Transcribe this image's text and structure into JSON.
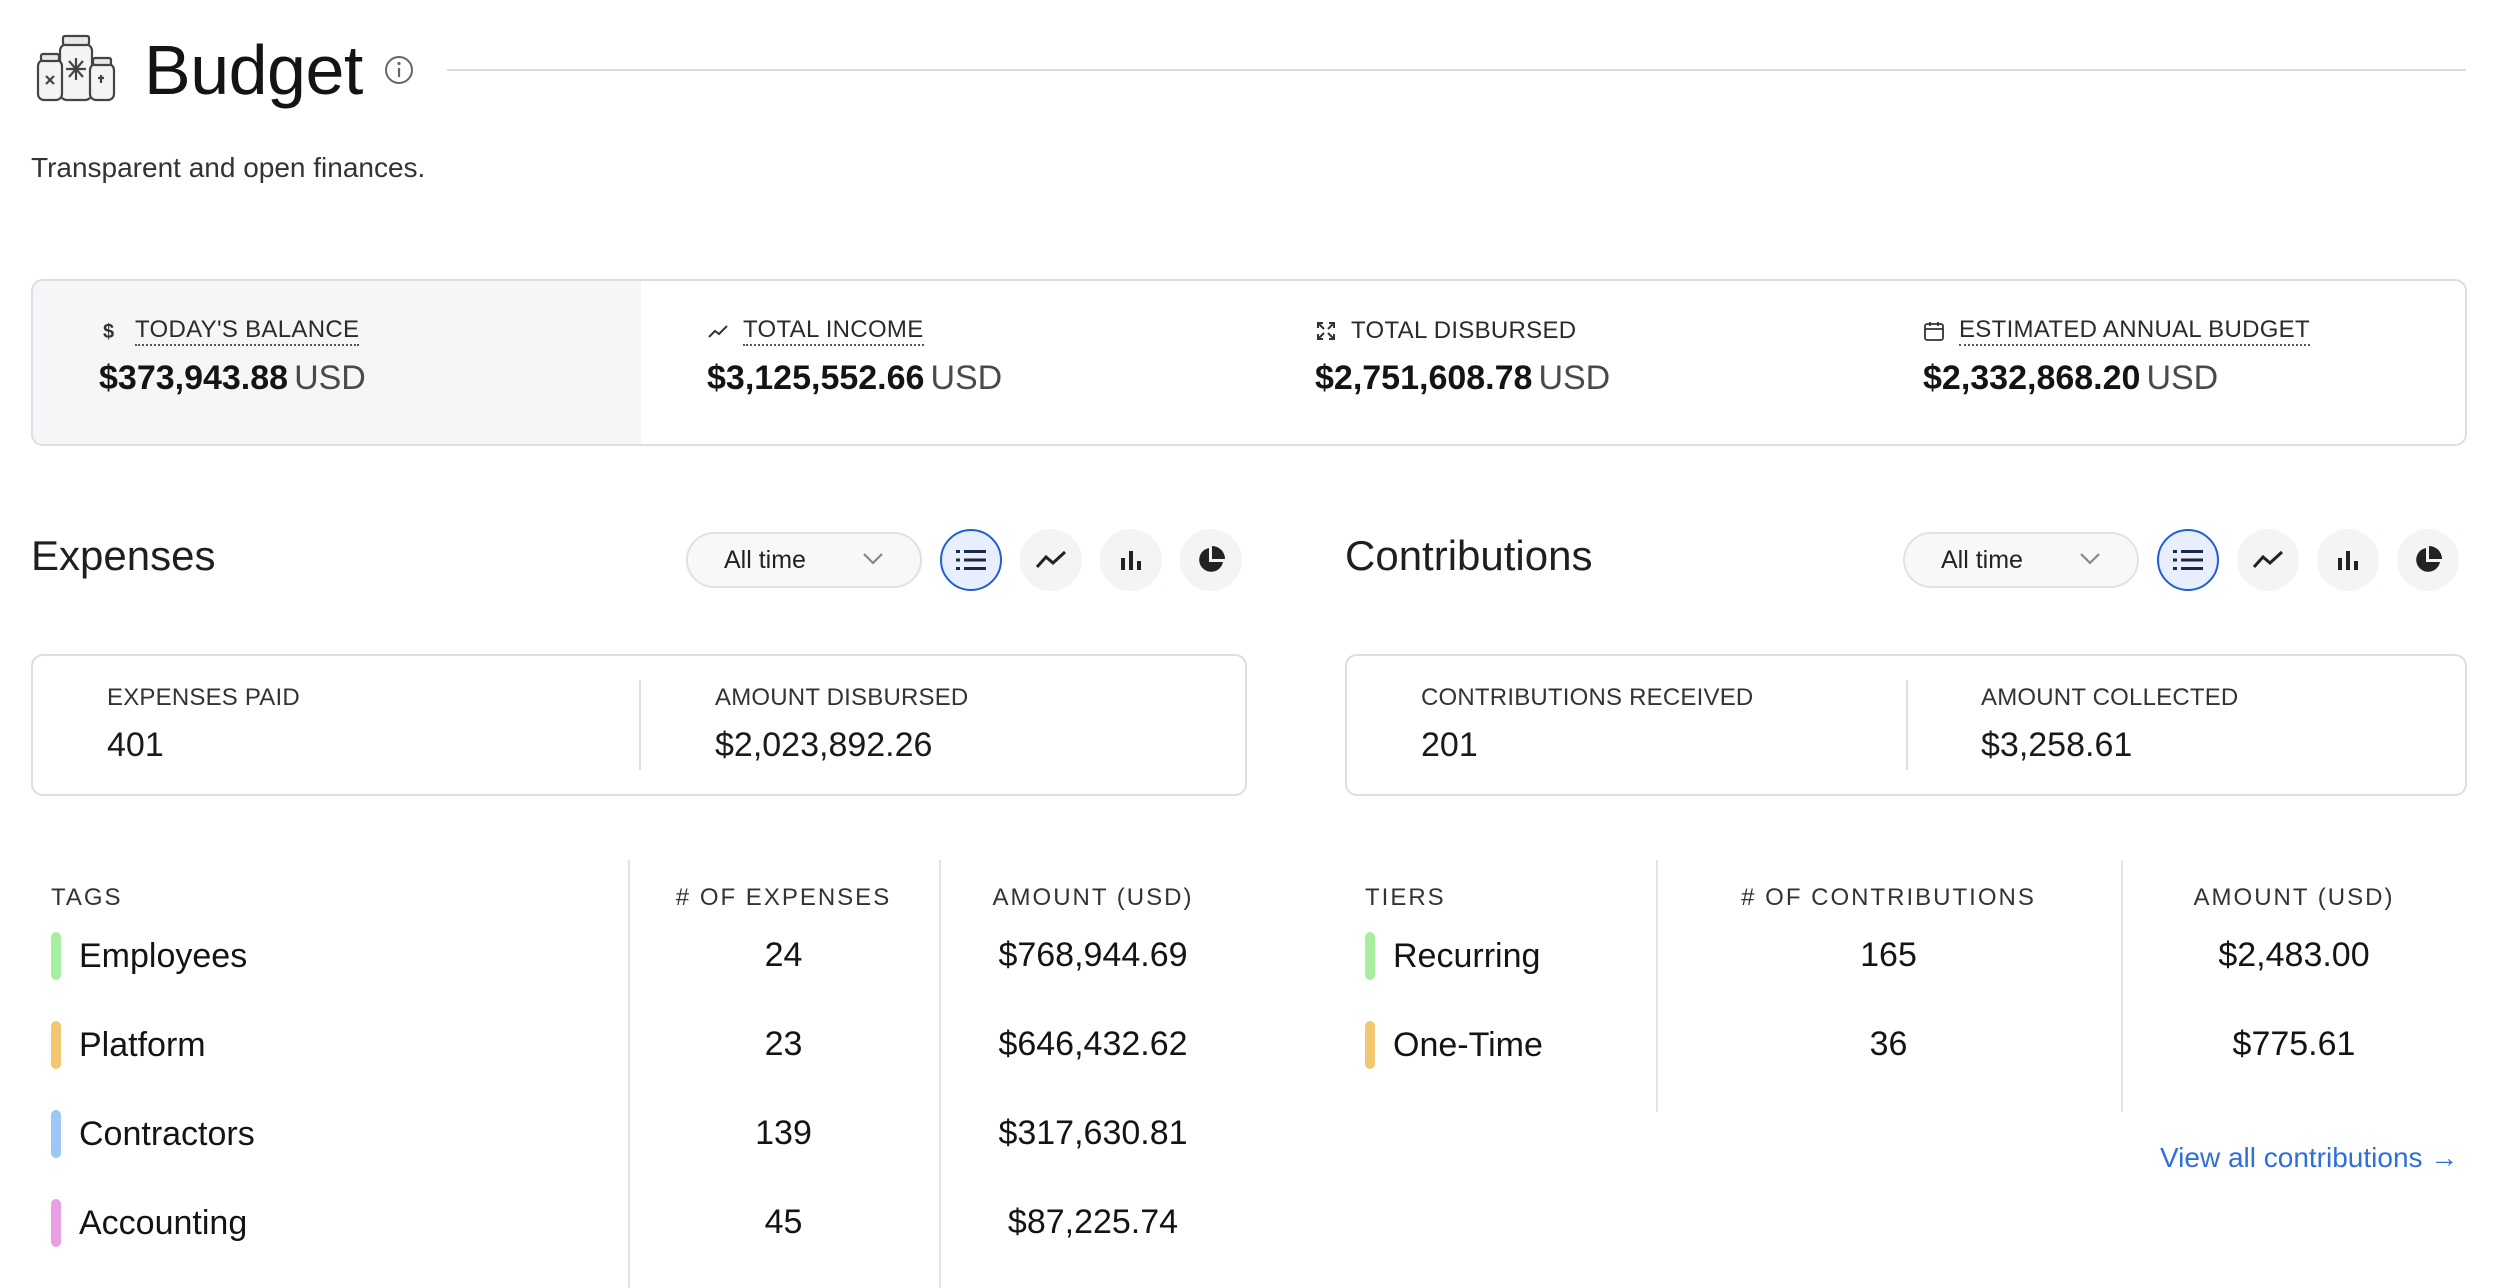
{
  "header": {
    "title": "Budget",
    "subtitle": "Transparent and open finances."
  },
  "summary": [
    {
      "label": "TODAY'S BALANCE",
      "amount": "$373,943.88",
      "currency": "USD",
      "icon": "dollar-icon"
    },
    {
      "label": "TOTAL INCOME",
      "amount": "$3,125,552.66",
      "currency": "USD",
      "icon": "trend-up-icon"
    },
    {
      "label": "TOTAL DISBURSED",
      "amount": "$2,751,608.78",
      "currency": "USD",
      "icon": "expand-icon"
    },
    {
      "label": "ESTIMATED ANNUAL BUDGET",
      "amount": "$2,332,868.20",
      "currency": "USD",
      "icon": "calendar-icon"
    }
  ],
  "expenses": {
    "title": "Expenses",
    "period": "All time",
    "stats": [
      {
        "label": "EXPENSES PAID",
        "value": "401"
      },
      {
        "label": "AMOUNT DISBURSED",
        "value": "$2,023,892.26"
      }
    ],
    "columns": [
      "TAGS",
      "# OF EXPENSES",
      "AMOUNT (USD)"
    ],
    "rows": [
      {
        "name": "Employees",
        "count": "24",
        "amount": "$768,944.69",
        "color": "#a6ef9c"
      },
      {
        "name": "Platform",
        "count": "23",
        "amount": "$646,432.62",
        "color": "#f3c772"
      },
      {
        "name": "Contractors",
        "count": "139",
        "amount": "$317,630.81",
        "color": "#9cc6f4"
      },
      {
        "name": "Accounting",
        "count": "45",
        "amount": "$87,225.74",
        "color": "#ea9fe2"
      }
    ]
  },
  "contributions": {
    "title": "Contributions",
    "period": "All time",
    "stats": [
      {
        "label": "CONTRIBUTIONS RECEIVED",
        "value": "201"
      },
      {
        "label": "AMOUNT COLLECTED",
        "value": "$3,258.61"
      }
    ],
    "columns": [
      "TIERS",
      "# OF CONTRIBUTIONS",
      "AMOUNT (USD)"
    ],
    "rows": [
      {
        "name": "Recurring",
        "count": "165",
        "amount": "$2,483.00",
        "color": "#a6ef9c"
      },
      {
        "name": "One-Time",
        "count": "36",
        "amount": "$775.61",
        "color": "#f3c772"
      }
    ],
    "view_all": "View all contributions →"
  },
  "view_buttons": [
    "list-icon",
    "line-chart-icon",
    "bar-chart-icon",
    "pie-chart-icon"
  ],
  "colors": {
    "accent": "#1f5fd6",
    "link": "#2e6fdc"
  }
}
